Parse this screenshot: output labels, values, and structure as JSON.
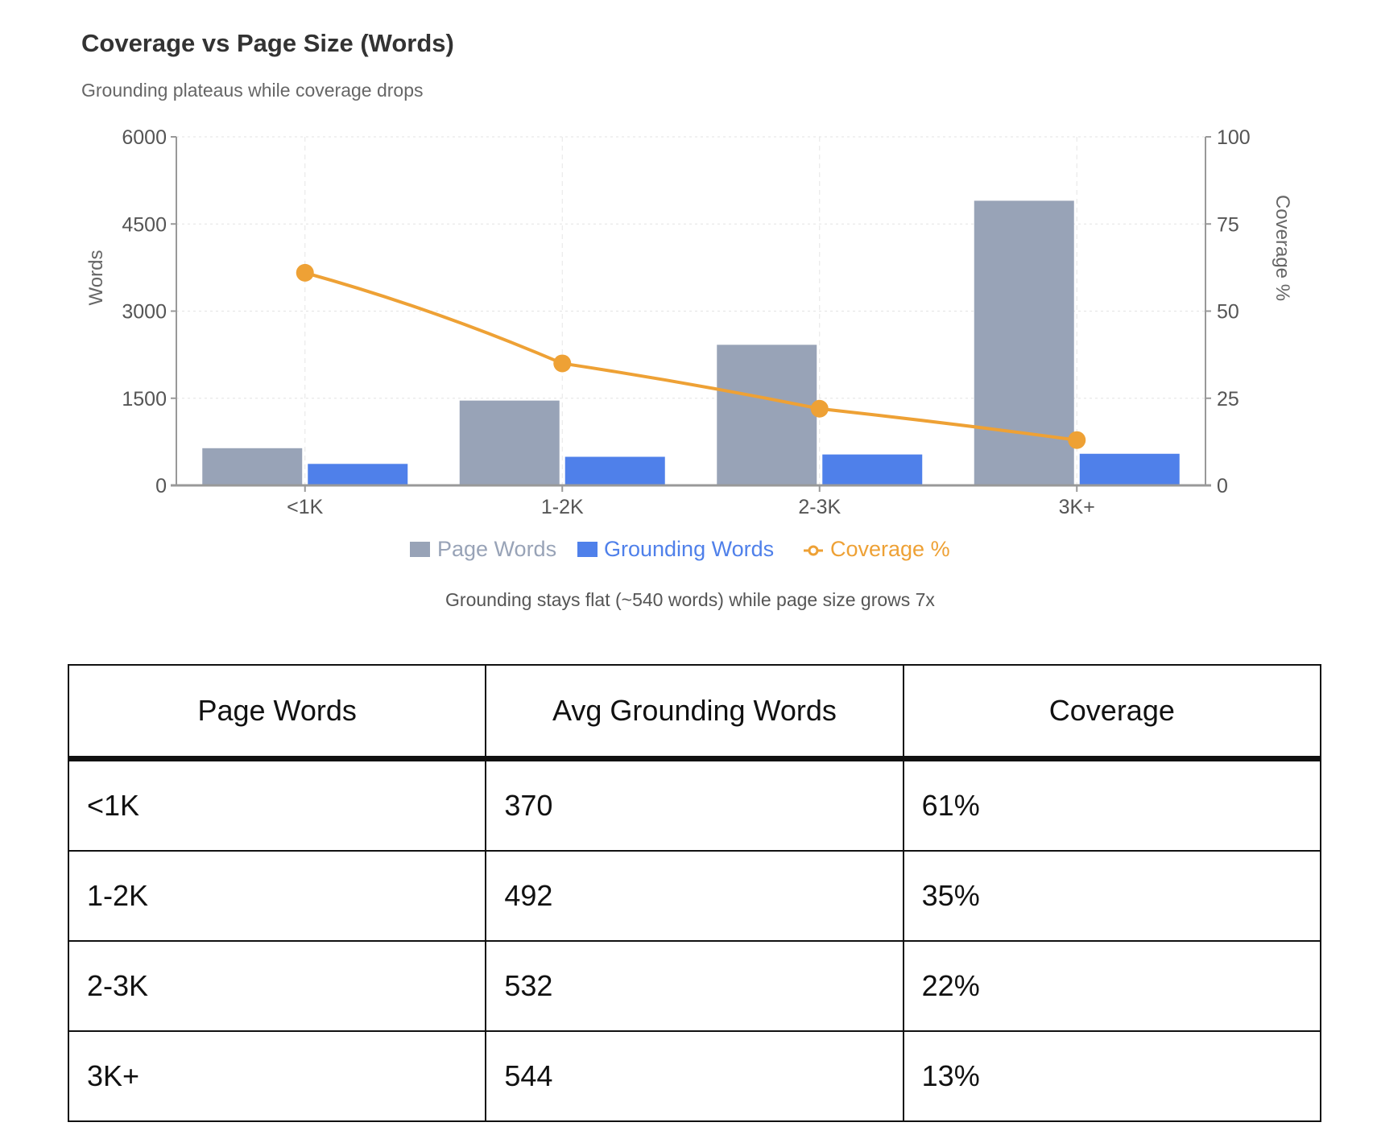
{
  "chart_data": {
    "type": "bar",
    "title": "Coverage vs Page Size (Words)",
    "subtitle": "Grounding plateaus while coverage drops",
    "categories": [
      "<1K",
      "1-2K",
      "2-3K",
      "3K+"
    ],
    "series": [
      {
        "name": "Page Words",
        "type": "bar",
        "axis": "left",
        "color": "#98a3b7",
        "values": [
          640,
          1460,
          2420,
          4900
        ]
      },
      {
        "name": "Grounding Words",
        "type": "bar",
        "axis": "left",
        "color": "#4f80ea",
        "values": [
          370,
          492,
          532,
          544
        ]
      },
      {
        "name": "Coverage %",
        "type": "line",
        "axis": "right",
        "color": "#eea135",
        "values": [
          61,
          35,
          22,
          13
        ]
      }
    ],
    "ylabel": "Words",
    "ylim": [
      0,
      6000
    ],
    "yticks": [
      "0",
      "1500",
      "3000",
      "4500",
      "6000"
    ],
    "y2label": "Coverage %",
    "y2lim": [
      0,
      100
    ],
    "y2ticks": [
      "0",
      "25",
      "50",
      "75",
      "100"
    ],
    "grid": true,
    "legend_position": "bottom",
    "annotation": "Grounding stays flat (~540 words) while page size grows 7x"
  },
  "table": {
    "headers": [
      "Page Words",
      "Avg Grounding Words",
      "Coverage"
    ],
    "rows": [
      [
        "<1K",
        "370",
        "61%"
      ],
      [
        "1-2K",
        "492",
        "35%"
      ],
      [
        "2-3K",
        "532",
        "22%"
      ],
      [
        "3K+",
        "544",
        "13%"
      ]
    ]
  }
}
